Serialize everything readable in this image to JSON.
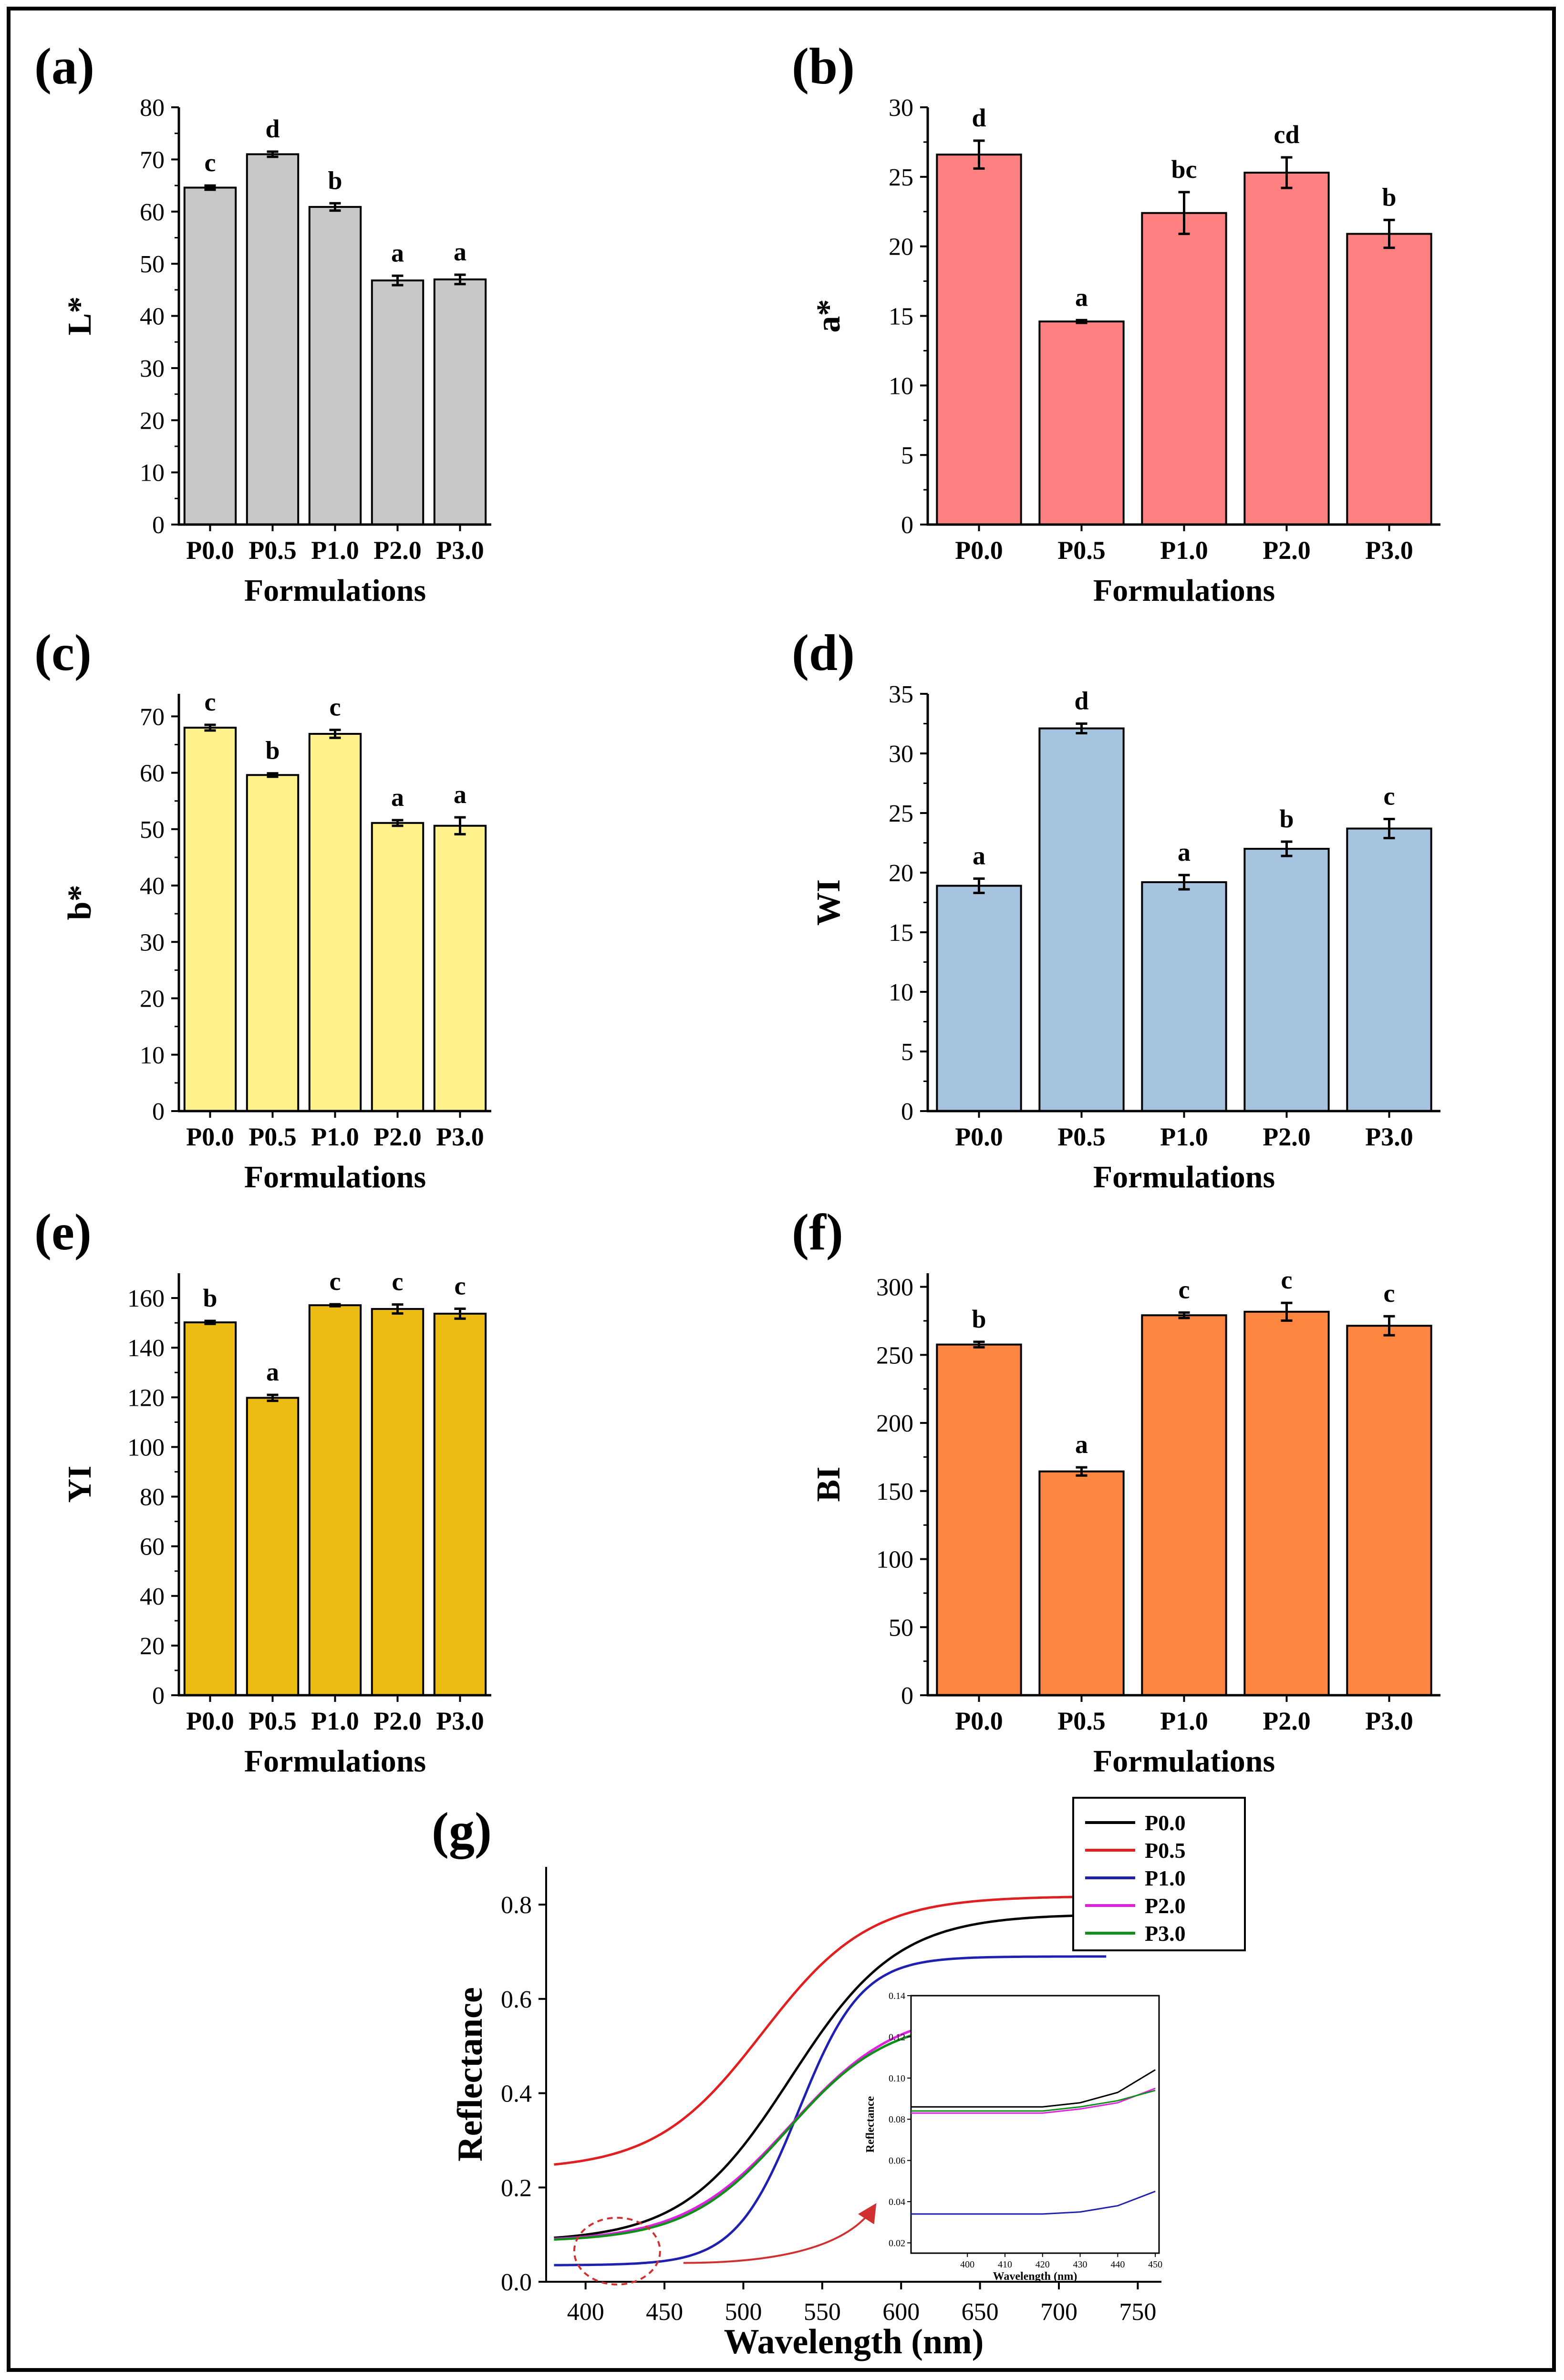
{
  "figure": {
    "xlabel_common": "Formulations"
  },
  "chart_data": [
    {
      "panel": "(a)",
      "type": "bar",
      "ylabel": "L*",
      "xlabel": "Formulations",
      "categories": [
        "P0.0",
        "P0.5",
        "P1.0",
        "P2.0",
        "P3.0"
      ],
      "values": [
        64.6,
        71.0,
        60.9,
        46.8,
        47.0
      ],
      "errors": [
        0.4,
        0.5,
        0.7,
        0.9,
        0.9
      ],
      "letters": [
        "c",
        "d",
        "b",
        "a",
        "a"
      ],
      "ylim": [
        0,
        80
      ],
      "ticks": [
        0,
        10,
        20,
        30,
        40,
        50,
        60,
        70,
        80
      ],
      "color": "#c8c8c8"
    },
    {
      "panel": "(b)",
      "type": "bar",
      "ylabel": "a*",
      "xlabel": "Formulations",
      "categories": [
        "P0.0",
        "P0.5",
        "P1.0",
        "P2.0",
        "P3.0"
      ],
      "values": [
        26.6,
        14.6,
        22.4,
        25.3,
        20.9
      ],
      "errors": [
        1.0,
        0.1,
        1.5,
        1.1,
        1.0
      ],
      "letters": [
        "d",
        "a",
        "bc",
        "cd",
        "b"
      ],
      "ylim": [
        0,
        30
      ],
      "ticks": [
        0,
        5,
        10,
        15,
        20,
        25,
        30
      ],
      "color": "#ff8080"
    },
    {
      "panel": "(c)",
      "type": "bar",
      "ylabel": "b*",
      "xlabel": "Formulations",
      "categories": [
        "P0.0",
        "P0.5",
        "P1.0",
        "P2.0",
        "P3.0"
      ],
      "values": [
        68.0,
        59.6,
        66.9,
        51.1,
        50.6
      ],
      "errors": [
        0.5,
        0.3,
        0.7,
        0.5,
        1.5
      ],
      "letters": [
        "c",
        "b",
        "c",
        "a",
        "a"
      ],
      "ylim": [
        0,
        74
      ],
      "ticks": [
        0,
        10,
        20,
        30,
        40,
        50,
        60,
        70
      ],
      "color": "#fff28c"
    },
    {
      "panel": "(d)",
      "type": "bar",
      "ylabel": "WI",
      "xlabel": "Formulations",
      "categories": [
        "P0.0",
        "P0.5",
        "P1.0",
        "P2.0",
        "P3.0"
      ],
      "values": [
        18.9,
        32.1,
        19.2,
        22.0,
        23.7
      ],
      "errors": [
        0.6,
        0.4,
        0.6,
        0.6,
        0.8
      ],
      "letters": [
        "a",
        "d",
        "a",
        "b",
        "c"
      ],
      "ylim": [
        0,
        35
      ],
      "ticks": [
        0,
        5,
        10,
        15,
        20,
        25,
        30,
        35
      ],
      "color": "#a6c4e0"
    },
    {
      "panel": "(e)",
      "type": "bar",
      "ylabel": "YI",
      "xlabel": "Formulations",
      "categories": [
        "P0.0",
        "P0.5",
        "P1.0",
        "P2.0",
        "P3.0"
      ],
      "values": [
        150.2,
        119.8,
        157.1,
        155.6,
        153.7
      ],
      "errors": [
        0.6,
        1.2,
        0.4,
        1.8,
        2.0
      ],
      "letters": [
        "b",
        "a",
        "c",
        "c",
        "c"
      ],
      "ylim": [
        0,
        170
      ],
      "ticks": [
        0,
        20,
        40,
        60,
        80,
        100,
        120,
        140,
        160
      ],
      "color": "#ecbc12"
    },
    {
      "panel": "(f)",
      "type": "bar",
      "ylabel": "BI",
      "xlabel": "Formulations",
      "categories": [
        "P0.0",
        "P0.5",
        "P1.0",
        "P2.0",
        "P3.0"
      ],
      "values": [
        257.6,
        164.4,
        279.1,
        281.7,
        271.4
      ],
      "errors": [
        2.0,
        3.0,
        2.0,
        6.5,
        7.0
      ],
      "letters": [
        "b",
        "a",
        "c",
        "c",
        "c"
      ],
      "ylim": [
        0,
        310
      ],
      "ticks": [
        0,
        50,
        100,
        150,
        200,
        250,
        300
      ],
      "color": "#ff8640"
    },
    {
      "panel": "(g)",
      "type": "line",
      "ylabel": "Reflectance",
      "xlabel": "Wavelength (nm)",
      "xlim": [
        375,
        765
      ],
      "ylim": [
        0,
        0.88
      ],
      "xticks": [
        400,
        450,
        500,
        550,
        600,
        650,
        700,
        750
      ],
      "yticks": [
        0.0,
        0.2,
        0.4,
        0.6,
        0.8
      ],
      "series": [
        {
          "name": "P0.0",
          "color": "#000000",
          "low": 0.085,
          "high": 0.78,
          "mid": 530,
          "width": 34
        },
        {
          "name": "P0.5",
          "color": "#e02020",
          "low": 0.237,
          "high": 0.818,
          "mid": 512,
          "width": 34
        },
        {
          "name": "P1.0",
          "color": "#2020b0",
          "low": 0.035,
          "high": 0.69,
          "mid": 535,
          "width": 20
        },
        {
          "name": "P2.0",
          "color": "#e020e0",
          "low": 0.085,
          "high": 0.58,
          "mid": 530,
          "width": 34
        },
        {
          "name": "P3.0",
          "color": "#10901a",
          "low": 0.085,
          "high": 0.56,
          "mid": 528,
          "width": 32
        }
      ],
      "inset": {
        "xlabel": "Wavelength (nm)",
        "ylabel": "Reflectance",
        "xlim": [
          385,
          451
        ],
        "ylim": [
          0.015,
          0.14
        ],
        "xticks": [
          400,
          410,
          420,
          430,
          440,
          450
        ],
        "yticks": [
          0.02,
          0.04,
          0.06,
          0.08,
          0.1,
          0.12,
          0.14
        ],
        "series": [
          {
            "name": "P0.0",
            "color": "#000000",
            "points": [
              [
                385,
                0.086
              ],
              [
                400,
                0.086
              ],
              [
                410,
                0.086
              ],
              [
                420,
                0.086
              ],
              [
                430,
                0.088
              ],
              [
                440,
                0.093
              ],
              [
                450,
                0.104
              ]
            ]
          },
          {
            "name": "P2.0",
            "color": "#e020e0",
            "points": [
              [
                385,
                0.083
              ],
              [
                400,
                0.083
              ],
              [
                410,
                0.083
              ],
              [
                420,
                0.083
              ],
              [
                430,
                0.085
              ],
              [
                440,
                0.088
              ],
              [
                450,
                0.095
              ]
            ]
          },
          {
            "name": "P3.0",
            "color": "#10901a",
            "points": [
              [
                385,
                0.084
              ],
              [
                400,
                0.084
              ],
              [
                410,
                0.084
              ],
              [
                420,
                0.084
              ],
              [
                430,
                0.086
              ],
              [
                440,
                0.089
              ],
              [
                450,
                0.094
              ]
            ]
          },
          {
            "name": "P1.0",
            "color": "#2020b0",
            "points": [
              [
                385,
                0.034
              ],
              [
                400,
                0.034
              ],
              [
                410,
                0.034
              ],
              [
                420,
                0.034
              ],
              [
                430,
                0.035
              ],
              [
                440,
                0.038
              ],
              [
                450,
                0.045
              ]
            ]
          }
        ]
      }
    }
  ]
}
